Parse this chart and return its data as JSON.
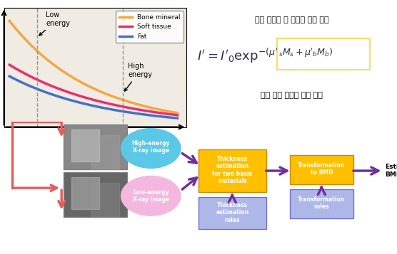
{
  "fig_width": 5.56,
  "fig_height": 3.57,
  "dpi": 100,
  "bg_color": "#ffffff",
  "graph": {
    "x_range": [
      0,
      10
    ],
    "y_range": [
      0,
      10
    ],
    "bone_color": "#f4a742",
    "soft_color": "#e8306e",
    "fat_color": "#4472c4",
    "legend_labels": [
      "Bone mineral",
      "Soft tissue",
      "Fat"
    ],
    "low_energy_x": 1.5,
    "high_energy_x": 6.5
  },
  "formula": {
    "korean_top": "연부 조직과 뼈 조직의 단위 부피",
    "korean_bot": "뼈와 연부 조직의 감쇄 계수",
    "box_color": "#ffd966",
    "text_color": "#2e4057"
  },
  "flow": {
    "arrow_color": "#7030a0",
    "outer_arrow_color": "#e86060",
    "circle_high_color": "#5bc8e8",
    "circle_low_color": "#f4b8e0",
    "rect_thick_color": "#ffc000",
    "rect_trans_color": "#ffc000",
    "rect_thick_rules_color": "#aeb8e8",
    "rect_trans_rules_color": "#aeb8e8",
    "text_white": "#ffffff",
    "text_dark": "#2e2e2e"
  }
}
